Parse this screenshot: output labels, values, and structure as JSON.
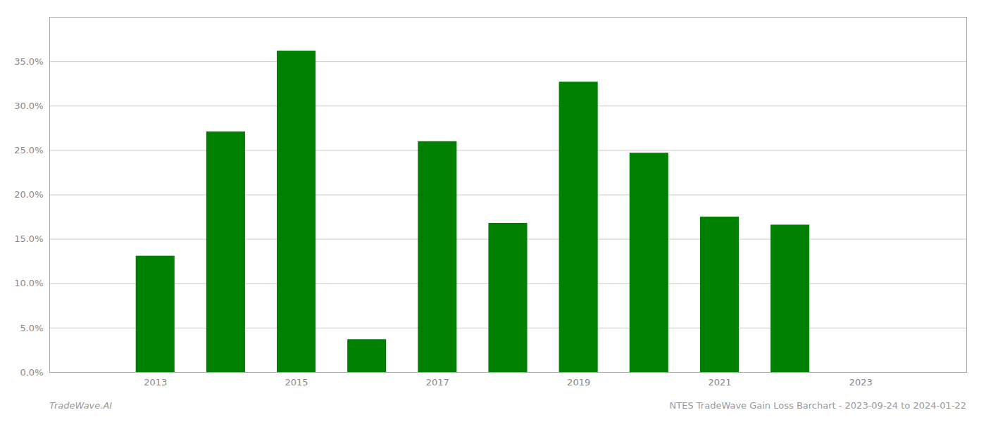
{
  "chart_data": {
    "type": "bar",
    "x": [
      2013,
      2014,
      2015,
      2016,
      2017,
      2018,
      2019,
      2020,
      2021,
      2022
    ],
    "values": [
      0.131,
      0.271,
      0.362,
      0.037,
      0.26,
      0.168,
      0.327,
      0.247,
      0.175,
      0.166
    ],
    "color": "#008000",
    "xlim": [
      2011.5,
      2024.5
    ],
    "xticks": [
      2013,
      2015,
      2017,
      2019,
      2021,
      2023
    ],
    "ylim": [
      0.0,
      0.4
    ],
    "yticks": [
      {
        "value": 0.0,
        "label": "0.0%"
      },
      {
        "value": 0.05,
        "label": "5.0%"
      },
      {
        "value": 0.1,
        "label": "10.0%"
      },
      {
        "value": 0.15,
        "label": "15.0%"
      },
      {
        "value": 0.2,
        "label": "20.0%"
      },
      {
        "value": 0.25,
        "label": "25.0%"
      },
      {
        "value": 0.3,
        "label": "30.0%"
      },
      {
        "value": 0.35,
        "label": "35.0%"
      }
    ],
    "grid": true,
    "annotations": [
      "TradeWave.AI",
      "NTES TradeWave Gain Loss Barchart - 2023-09-24 to 2024-01-22"
    ]
  }
}
